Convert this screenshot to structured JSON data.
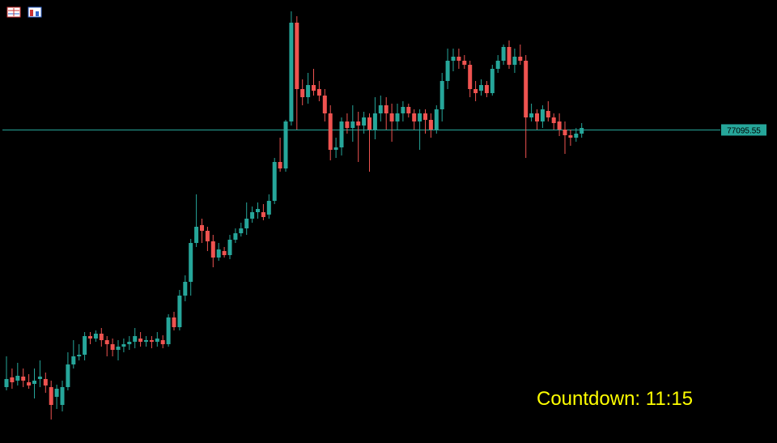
{
  "chart_data": {
    "type": "candlestick",
    "ylim": [
      73230,
      78700
    ],
    "up_color": "#26a69a",
    "down_color": "#ef5350",
    "price_line_color": "#26a69a",
    "price_line": 77095.55,
    "annotation": "Countdown: 11:15",
    "open": [
      73920,
      74040,
      74000,
      74050,
      73980,
      73960,
      74020,
      74020,
      73920,
      73800,
      73700,
      73920,
      74200,
      74300,
      74320,
      74550,
      74520,
      74580,
      74500,
      74450,
      74380,
      74420,
      74450,
      74480,
      74520,
      74480,
      74500,
      74480,
      74500,
      74450,
      74780,
      74660,
      75050,
      75220,
      75700,
      75920,
      75850,
      75720,
      75520,
      75600,
      75550,
      75740,
      75820,
      75880,
      76000,
      76080,
      76080,
      76050,
      76220,
      76700,
      76620,
      77200,
      78420,
      77600,
      77500,
      77650,
      77600,
      77520,
      77300,
      76850,
      76880,
      77200,
      77120,
      77200,
      77150,
      77250,
      77100,
      77300,
      77400,
      77300,
      77200,
      77300,
      77380,
      77300,
      77200,
      77300,
      77220,
      77100,
      77350,
      77700,
      77950,
      78000,
      77950,
      77900,
      77600,
      77580,
      77650,
      77550,
      77850,
      77950,
      78120,
      77900,
      78000,
      77950,
      77250,
      77300,
      77200,
      77330,
      77250,
      77200,
      77100,
      77030,
      77000,
      77050
    ],
    "high": [
      74300,
      74150,
      74220,
      74150,
      74080,
      74150,
      74250,
      74100,
      74000,
      73950,
      74000,
      74350,
      74500,
      74450,
      74600,
      74600,
      74620,
      74650,
      74550,
      74520,
      74500,
      74520,
      74550,
      74650,
      74600,
      74550,
      74550,
      74600,
      74560,
      74820,
      74850,
      75120,
      75300,
      75750,
      76300,
      76000,
      75900,
      75800,
      75700,
      75650,
      75800,
      75880,
      75950,
      76200,
      76150,
      76200,
      76180,
      76300,
      76750,
      77000,
      77220,
      78560,
      78500,
      77720,
      77800,
      77850,
      77700,
      77600,
      77400,
      77000,
      77250,
      77300,
      77400,
      77320,
      77320,
      77300,
      77500,
      77520,
      77500,
      77420,
      77420,
      77450,
      77420,
      77350,
      77350,
      77350,
      77300,
      77400,
      77800,
      78100,
      78100,
      78100,
      78020,
      77950,
      77700,
      77720,
      77700,
      77900,
      78020,
      78150,
      78200,
      78100,
      78150,
      78020,
      77420,
      77350,
      77400,
      77450,
      77300,
      77300,
      77200,
      77100,
      77120,
      77180
    ],
    "low": [
      73880,
      73900,
      73940,
      73920,
      73900,
      73780,
      73920,
      73850,
      73520,
      73650,
      73620,
      73880,
      74150,
      74250,
      74250,
      74450,
      74480,
      74420,
      74300,
      74300,
      74250,
      74350,
      74380,
      74400,
      74420,
      74420,
      74400,
      74420,
      74400,
      74420,
      74620,
      74620,
      74980,
      75050,
      75650,
      75700,
      75600,
      75400,
      75480,
      75520,
      75500,
      75700,
      75780,
      75800,
      75950,
      76000,
      75980,
      76000,
      76180,
      76580,
      76580,
      77150,
      77100,
      77400,
      77420,
      77520,
      77450,
      77200,
      76720,
      76750,
      76780,
      77050,
      76950,
      76700,
      77050,
      76580,
      76980,
      77200,
      77100,
      76950,
      77100,
      77200,
      77250,
      77100,
      76850,
      77050,
      77000,
      77050,
      77200,
      77600,
      77820,
      77850,
      77850,
      77500,
      77450,
      77520,
      77500,
      77520,
      77800,
      77900,
      77850,
      77800,
      77900,
      76750,
      77200,
      77100,
      77120,
      77200,
      77100,
      77020,
      76800,
      76900,
      76950,
      77000
    ],
    "close": [
      74020,
      73980,
      74060,
      74000,
      73940,
      74000,
      74050,
      73940,
      73700,
      73900,
      73920,
      74200,
      74300,
      74320,
      74550,
      74520,
      74580,
      74500,
      74450,
      74380,
      74420,
      74450,
      74480,
      74550,
      74480,
      74500,
      74480,
      74520,
      74450,
      74780,
      74660,
      75050,
      75220,
      75700,
      75900,
      75850,
      75720,
      75520,
      75620,
      75550,
      75740,
      75820,
      75880,
      76000,
      76080,
      76120,
      76020,
      76220,
      76700,
      76620,
      77200,
      78420,
      77600,
      77500,
      77650,
      77580,
      77520,
      77300,
      76850,
      76880,
      77200,
      77120,
      77200,
      77150,
      77250,
      77100,
      77300,
      77400,
      77300,
      77200,
      77300,
      77380,
      77300,
      77200,
      77300,
      77220,
      77100,
      77350,
      77700,
      77950,
      78000,
      77950,
      77900,
      77600,
      77550,
      77650,
      77550,
      77850,
      77950,
      78120,
      77900,
      78000,
      77950,
      77250,
      77300,
      77200,
      77350,
      77250,
      77180,
      77100,
      77030,
      77000,
      77050,
      77120
    ]
  }
}
